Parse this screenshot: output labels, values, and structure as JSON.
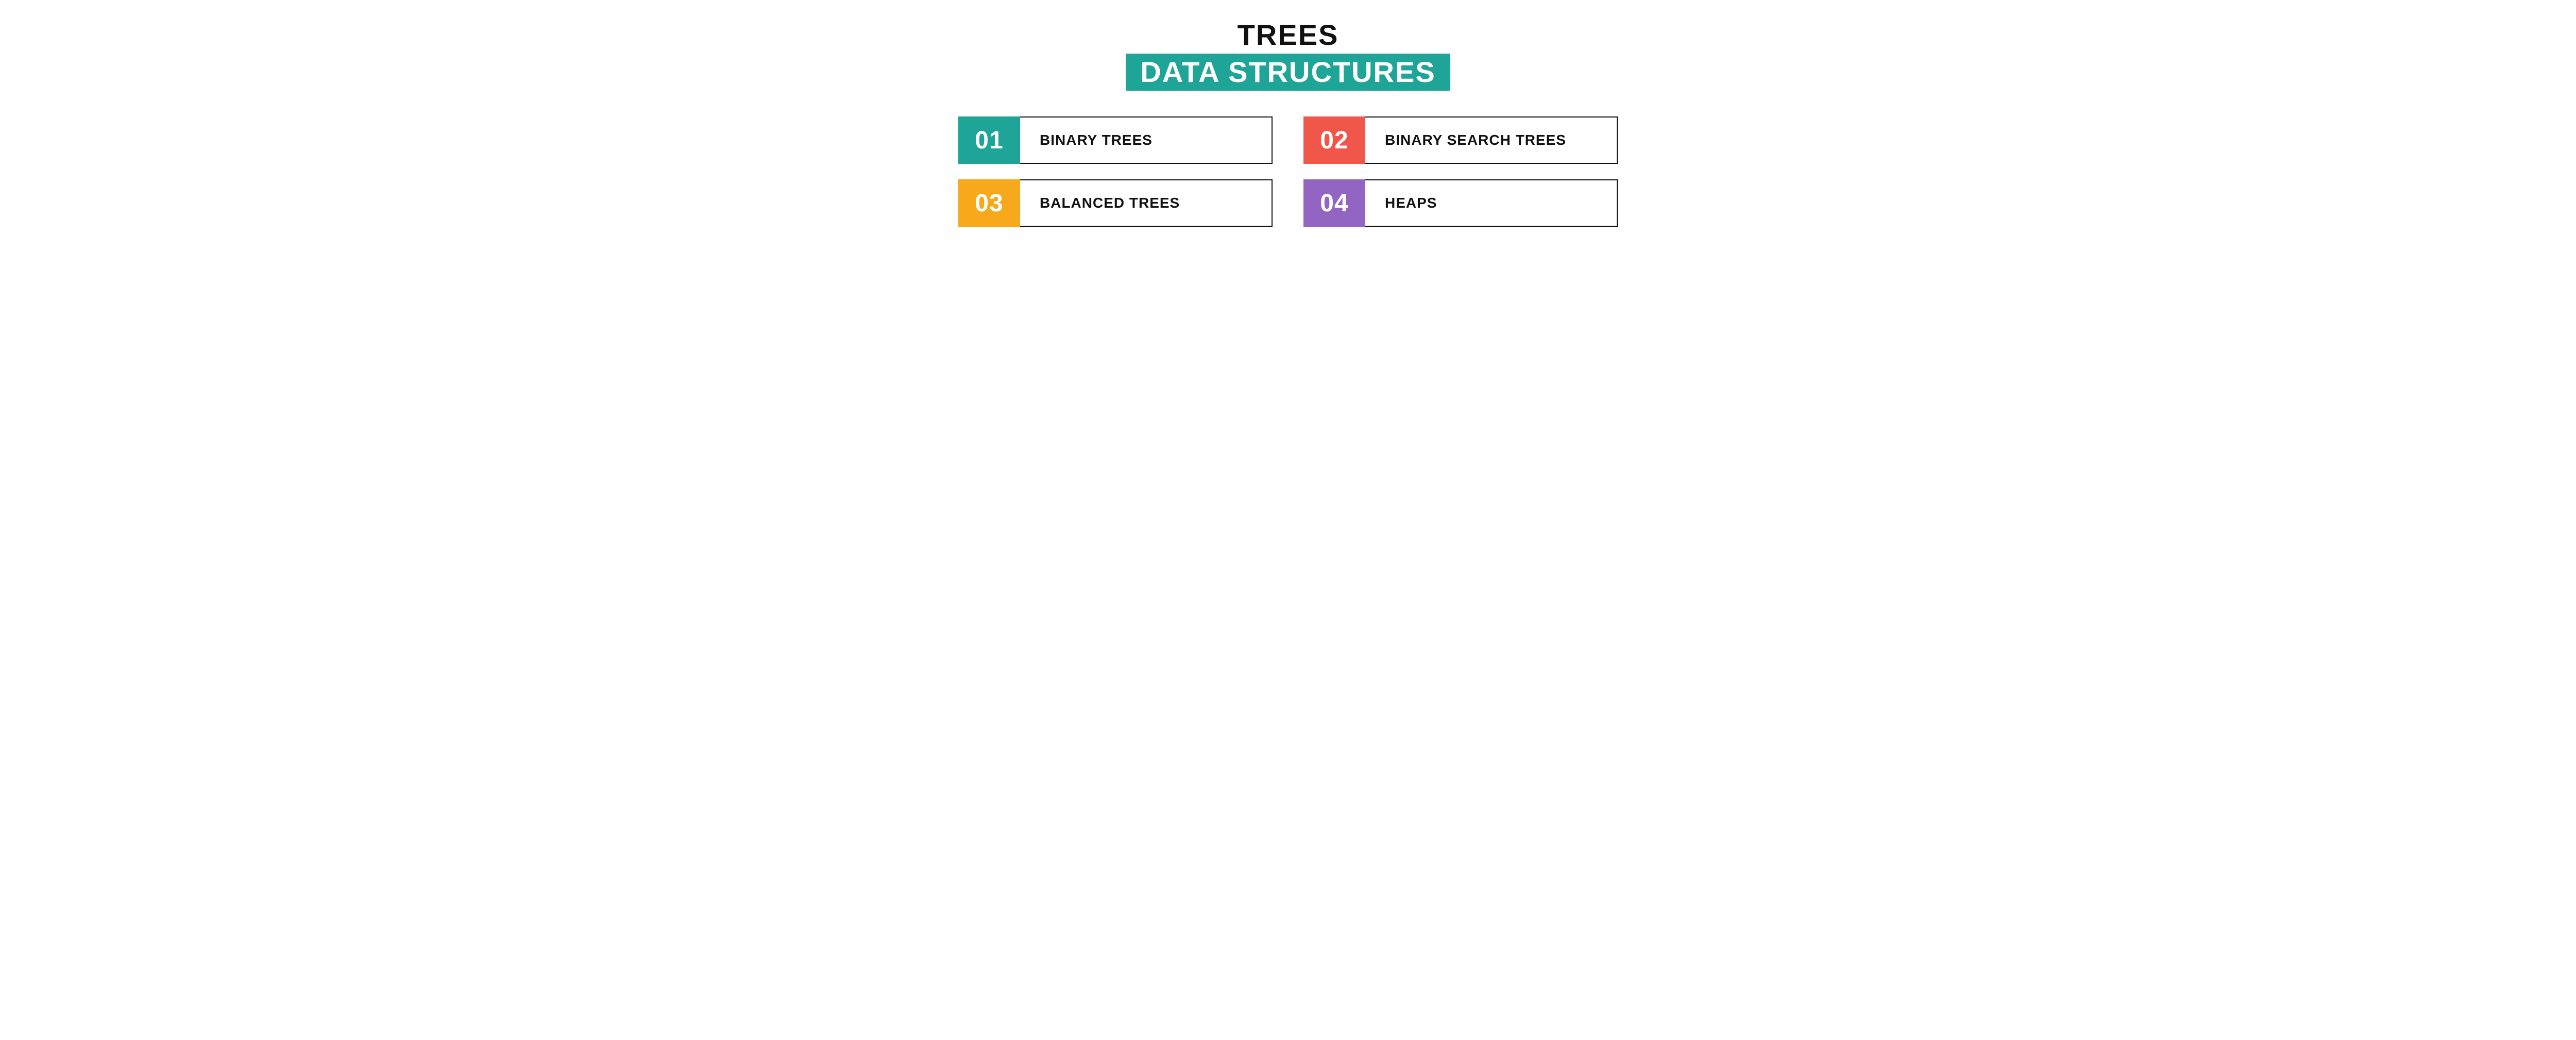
{
  "header": {
    "title": "TREES",
    "subtitle": "DATA STRUCTURES",
    "subtitle_bg": "#1fa597",
    "title_color": "#111111",
    "subtitle_color": "#ffffff"
  },
  "layout": {
    "background": "#ffffff",
    "border_color": "#111111",
    "columns": 2,
    "item_height": 92,
    "num_box_width": 120
  },
  "items": [
    {
      "num": "01",
      "label": "BINARY TREES",
      "color": "#1fa597"
    },
    {
      "num": "02",
      "label": "BINARY SEARCH TREES",
      "color": "#f1564b"
    },
    {
      "num": "03",
      "label": "BALANCED TREES",
      "color": "#f7a81b"
    },
    {
      "num": "04",
      "label": "HEAPS",
      "color": "#9265c2"
    }
  ],
  "typography": {
    "title_fontsize": 56,
    "subtitle_fontsize": 56,
    "num_fontsize": 48,
    "label_fontsize": 28,
    "weight": 900
  }
}
